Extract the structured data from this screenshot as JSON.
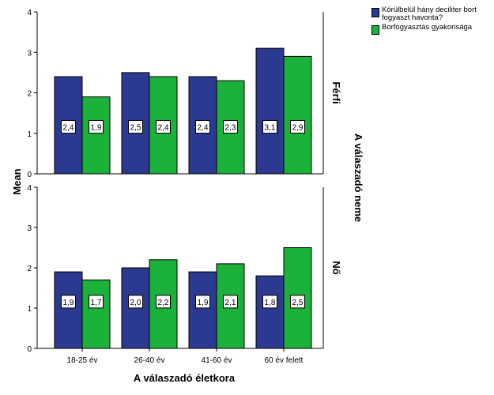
{
  "chart_data": {
    "type": "bar",
    "categories": [
      "18-25 év",
      "26-40 év",
      "41-60 év",
      "60 év felett"
    ],
    "xlabel": "A válaszadó életkora",
    "ylabel": "Mean",
    "facet_label": "A válaszadó neme",
    "ylim": [
      0,
      4
    ],
    "yticks": [
      "0",
      "1",
      "2",
      "3",
      "4"
    ],
    "grid": false,
    "legend_position": "top-right",
    "series": [
      {
        "name": "Körülbelül hány deciliter bort fogyaszt havonta?",
        "color": "#2B3990"
      },
      {
        "name": "Borfogyasztás gyakorisága",
        "color": "#1BB13A"
      }
    ],
    "panels": [
      {
        "label": "Férfi",
        "values": [
          [
            2.4,
            2.5,
            2.4,
            3.1
          ],
          [
            1.9,
            2.4,
            2.3,
            2.9
          ]
        ],
        "data_labels": [
          [
            "2,4",
            "2,5",
            "2,4",
            "3,1"
          ],
          [
            "1,9",
            "2,4",
            "2,3",
            "2,9"
          ]
        ]
      },
      {
        "label": "Nő",
        "values": [
          [
            1.9,
            2.0,
            1.9,
            1.8
          ],
          [
            1.7,
            2.2,
            2.1,
            2.5
          ]
        ],
        "data_labels": [
          [
            "1,9",
            "2,0",
            "1,9",
            "1,8"
          ],
          [
            "1,7",
            "2,2",
            "2,1",
            "2,5"
          ]
        ]
      }
    ]
  }
}
